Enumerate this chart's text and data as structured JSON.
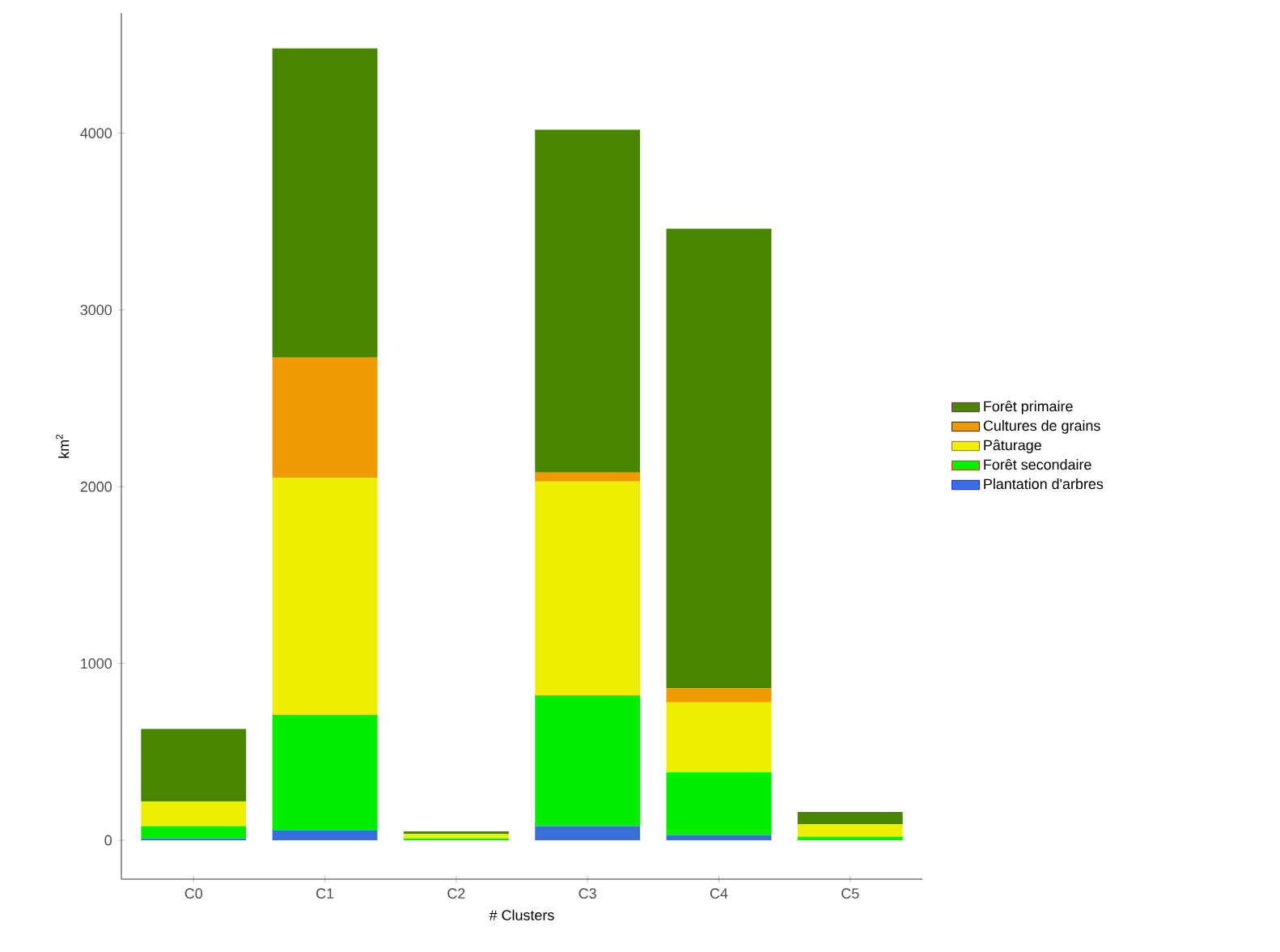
{
  "chart_data": {
    "type": "bar",
    "stacked": true,
    "xlabel": "# Clusters",
    "ylabel": "km$^{2}$",
    "categories": [
      "C0",
      "C1",
      "C2",
      "C3",
      "C4",
      "C5"
    ],
    "series": [
      {
        "name": "Plantation d'arbres",
        "color": "#3a6fd8",
        "values": [
          10,
          55,
          0,
          80,
          30,
          0
        ]
      },
      {
        "name": "Forêt secondaire",
        "color": "#00ee00",
        "values": [
          70,
          655,
          10,
          740,
          355,
          20
        ]
      },
      {
        "name": "Pâturage",
        "color": "#eeee00",
        "values": [
          140,
          1340,
          25,
          1210,
          395,
          70
        ]
      },
      {
        "name": "Cultures de grains",
        "color": "#ee9a00",
        "values": [
          0,
          680,
          0,
          50,
          80,
          0
        ]
      },
      {
        "name": "Forêt primaire",
        "color": "#4a8500",
        "values": [
          410,
          1750,
          15,
          1940,
          2600,
          70
        ]
      }
    ],
    "ylim": [
      -220,
      4680
    ],
    "yticks": [
      0,
      1000,
      2000,
      3000,
      4000
    ],
    "grid": false,
    "legend": "right"
  }
}
